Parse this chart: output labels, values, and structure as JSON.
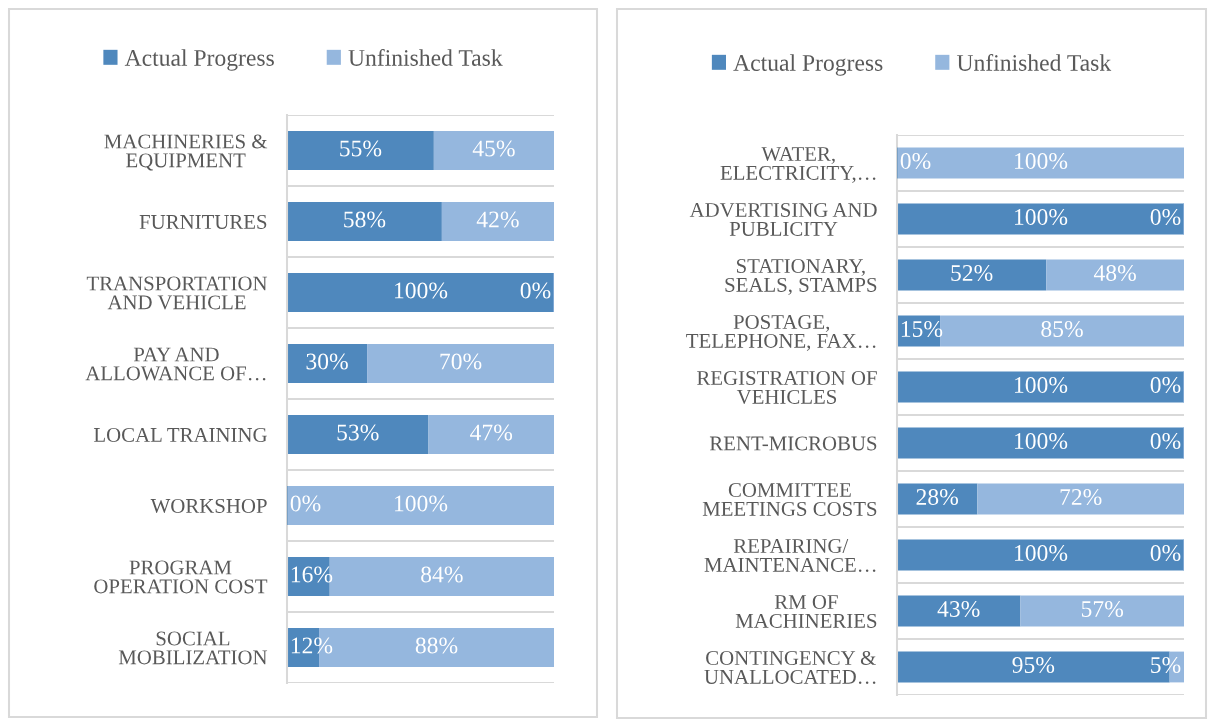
{
  "chart_data": [
    {
      "type": "bar",
      "orientation": "horizontal",
      "stacked": true,
      "categories": [
        "MACHINERIES &\nEQUIPMENT",
        "FURNITURES",
        "TRANSPORTATION\nAND VEHICLE",
        "PAY AND\nALLOWANCE OF…",
        "LOCAL TRAINING",
        "WORKSHOP",
        "PROGRAM\nOPERATION COST",
        "SOCIAL\nMOBILIZATION"
      ],
      "series": [
        {
          "name": "Actual Progress",
          "color": "#4f88bd",
          "values": [
            55,
            58,
            100,
            30,
            53,
            0,
            16,
            12
          ],
          "value_labels": [
            "55%",
            "58%",
            "100%",
            "30%",
            "53%",
            "0%",
            "16%",
            "12%"
          ]
        },
        {
          "name": "Unfinished Task",
          "color": "#95b7de",
          "values": [
            45,
            42,
            0,
            70,
            47,
            100,
            84,
            88
          ],
          "value_labels": [
            "45%",
            "42%",
            "0%",
            "70%",
            "47%",
            "100%",
            "84%",
            "88%"
          ]
        }
      ],
      "xlim": [
        0,
        100
      ],
      "grid": "y",
      "legend": "top",
      "tick_labels": "y"
    },
    {
      "type": "bar",
      "orientation": "horizontal",
      "stacked": true,
      "categories": [
        "WATER,\nELECTRICITY,…",
        "ADVERTISING AND\nPUBLICITY",
        "STATIONARY,\nSEALS, STAMPS",
        "POSTAGE,\nTELEPHONE, FAX…",
        "REGISTRATION OF\nVEHICLES",
        "RENT-MICROBUS",
        "COMMITTEE\nMEETINGS COSTS",
        "REPAIRING/\nMAINTENANCE…",
        "RM OF\nMACHINERIES",
        "CONTINGENCY &\nUNALLOCATED…"
      ],
      "series": [
        {
          "name": "Actual Progress",
          "color": "#4f88bd",
          "values": [
            0,
            100,
            52,
            15,
            100,
            100,
            28,
            100,
            43,
            95
          ],
          "value_labels": [
            "0%",
            "100%",
            "52%",
            "15%",
            "100%",
            "100%",
            "28%",
            "100%",
            "43%",
            "95%"
          ]
        },
        {
          "name": "Unfinished Task",
          "color": "#95b7de",
          "values": [
            100,
            0,
            48,
            85,
            0,
            0,
            72,
            0,
            57,
            5
          ],
          "value_labels": [
            "100%",
            "0%",
            "48%",
            "85%",
            "0%",
            "0%",
            "72%",
            "0%",
            "57%",
            "5%"
          ]
        }
      ],
      "xlim": [
        0,
        100
      ],
      "grid": "y",
      "legend": "top",
      "tick_labels": "y"
    }
  ]
}
